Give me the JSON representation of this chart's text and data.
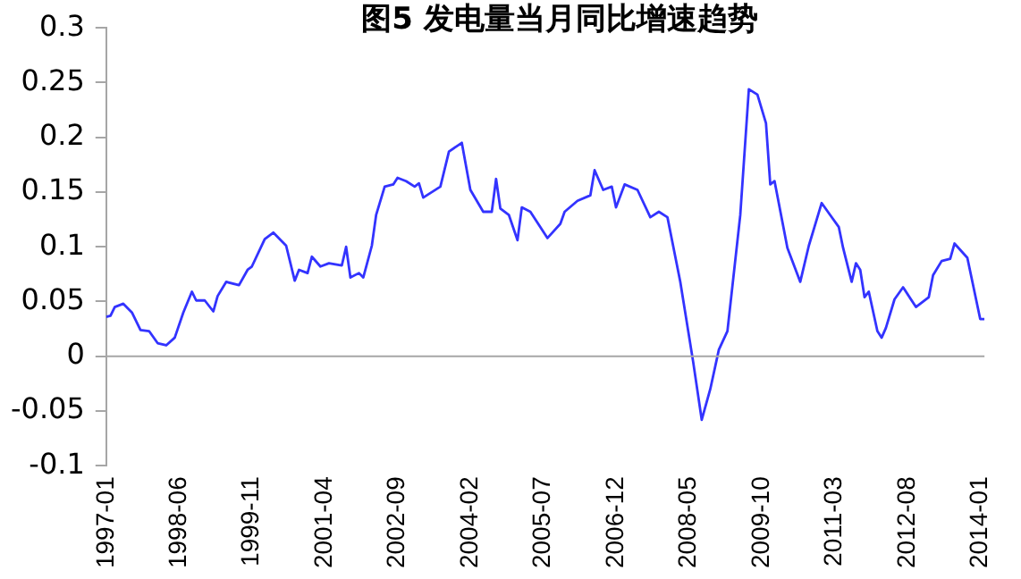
{
  "chart_data": {
    "type": "line",
    "title": "图5 发电量当月同比增速趋势",
    "x": [
      "1997-01",
      "1997-02",
      "1997-03",
      "1997-05",
      "1997-07",
      "1997-09",
      "1997-11",
      "1998-01",
      "1998-03",
      "1998-05",
      "1998-07",
      "1998-09",
      "1998-10",
      "1998-12",
      "1999-02",
      "1999-03",
      "1999-05",
      "1999-08",
      "1999-10",
      "1999-11",
      "2000-02",
      "2000-04",
      "2000-07",
      "2000-09",
      "2000-10",
      "2000-12",
      "2001-01",
      "2001-03",
      "2001-05",
      "2001-08",
      "2001-09",
      "2001-10",
      "2001-12",
      "2002-01",
      "2002-03",
      "2002-04",
      "2002-06",
      "2002-08",
      "2002-09",
      "2002-11",
      "2003-01",
      "2003-02",
      "2003-03",
      "2003-07",
      "2003-09",
      "2003-12",
      "2004-02",
      "2004-05",
      "2004-07",
      "2004-08",
      "2004-09",
      "2004-11",
      "2005-01",
      "2005-02",
      "2005-04",
      "2005-08",
      "2005-11",
      "2005-12",
      "2006-03",
      "2006-06",
      "2006-07",
      "2006-09",
      "2006-11",
      "2006-12",
      "2007-02",
      "2007-05",
      "2007-08",
      "2007-10",
      "2007-12",
      "2008-03",
      "2008-06",
      "2008-08",
      "2008-10",
      "2008-12",
      "2009-02",
      "2009-05",
      "2009-07",
      "2009-09",
      "2009-11",
      "2009-12",
      "2010-01",
      "2010-04",
      "2010-07",
      "2010-09",
      "2010-12",
      "2011-02",
      "2011-04",
      "2011-05",
      "2011-07",
      "2011-08",
      "2011-09",
      "2011-10",
      "2011-11",
      "2012-01",
      "2012-02",
      "2012-03",
      "2012-05",
      "2012-07",
      "2012-10",
      "2013-01",
      "2013-02",
      "2013-04",
      "2013-06",
      "2013-07",
      "2013-10",
      "2014-01",
      "2014-02"
    ],
    "series": [
      {
        "color": "#3333ff",
        "values": [
          0.036,
          0.037,
          0.045,
          0.048,
          0.04,
          0.024,
          0.023,
          0.012,
          0.01,
          0.017,
          0.04,
          0.059,
          0.051,
          0.051,
          0.041,
          0.055,
          0.068,
          0.065,
          0.079,
          0.082,
          0.107,
          0.113,
          0.101,
          0.069,
          0.079,
          0.076,
          0.091,
          0.082,
          0.085,
          0.083,
          0.1,
          0.072,
          0.076,
          0.072,
          0.101,
          0.129,
          0.155,
          0.157,
          0.163,
          0.16,
          0.155,
          0.158,
          0.145,
          0.155,
          0.187,
          0.195,
          0.152,
          0.132,
          0.132,
          0.162,
          0.135,
          0.129,
          0.106,
          0.136,
          0.132,
          0.108,
          0.121,
          0.132,
          0.142,
          0.147,
          0.17,
          0.152,
          0.155,
          0.136,
          0.157,
          0.152,
          0.127,
          0.132,
          0.127,
          0.068,
          -0.005,
          -0.058,
          -0.03,
          0.006,
          0.023,
          0.129,
          0.244,
          0.239,
          0.213,
          0.157,
          0.16,
          0.099,
          0.068,
          0.101,
          0.14,
          0.129,
          0.118,
          0.099,
          0.068,
          0.085,
          0.079,
          0.054,
          0.059,
          0.023,
          0.017,
          0.026,
          0.052,
          0.063,
          0.045,
          0.054,
          0.074,
          0.087,
          0.089,
          0.103,
          0.09,
          0.034,
          0.034
        ]
      }
    ],
    "xlim": [
      "1997-01",
      "2014-02"
    ],
    "xticks": [
      "1997-01",
      "1998-06",
      "1999-11",
      "2001-04",
      "2002-09",
      "2004-02",
      "2005-07",
      "2006-12",
      "2008-05",
      "2009-10",
      "2011-03",
      "2012-08",
      "2014-01"
    ],
    "ylim": [
      -0.1,
      0.3
    ],
    "yticks": [
      -0.1,
      -0.05,
      0,
      0.05,
      0.1,
      0.15,
      0.2,
      0.25,
      0.3
    ],
    "ref_lines": [
      {
        "axis": "y",
        "value": 0,
        "color": "#a6a6a6"
      }
    ],
    "grid": false,
    "legend": false,
    "marker": "none",
    "line_style": "solid"
  }
}
